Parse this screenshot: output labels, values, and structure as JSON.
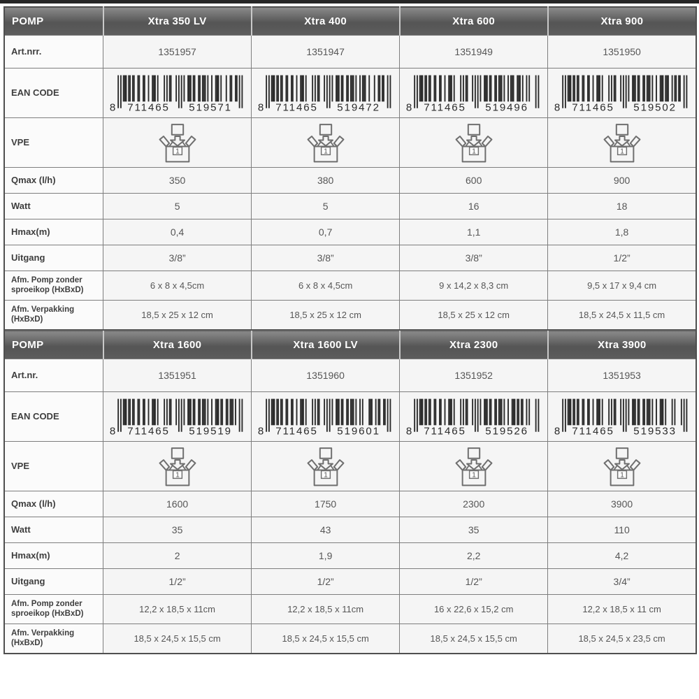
{
  "page": {
    "background": "#ffffff",
    "top_bar_color": "#262626",
    "grid_color": "#7e7e7e",
    "header_bg_top": "#8a8a8a",
    "header_bg_bottom": "#555555",
    "header_text_color": "#ffffff",
    "value_text_color": "#565656"
  },
  "icons": {
    "vpe": "packaging-box-icon",
    "ean": "barcode-graphic"
  },
  "tables": [
    {
      "corner_label": "POMP",
      "row_labels": {
        "art": "Art.nrr.",
        "ean": "EAN CODE",
        "vpe": "VPE",
        "qmax": "Qmax (l/h)",
        "watt": "Watt",
        "hmax": "Hmax(m)",
        "uitgang": "Uitgang",
        "afm_pomp": "Afm. Pomp zonder sproeikop (HxBxD)",
        "afm_verpakking": "Afm. Verpakking (HxBxD)"
      },
      "products": [
        {
          "name": "Xtra 350 LV",
          "art_nr": "1351957",
          "ean_code": "8711465519571",
          "ean_display": "8 711465 519571",
          "vpe": "1",
          "qmax": "350",
          "watt": "5",
          "hmax": "0,4",
          "uitgang": "3/8”",
          "afm_pomp": "6 x 8 x 4,5cm",
          "afm_verpakking": "18,5 x 25 x 12 cm"
        },
        {
          "name": "Xtra 400",
          "art_nr": "1351947",
          "ean_code": "8711465519472",
          "ean_display": "8 711465 519472",
          "vpe": "1",
          "qmax": "380",
          "watt": "5",
          "hmax": "0,7",
          "uitgang": "3/8”",
          "afm_pomp": "6 x 8 x 4,5cm",
          "afm_verpakking": "18,5 x 25 x 12 cm"
        },
        {
          "name": "Xtra 600",
          "art_nr": "1351949",
          "ean_code": "8711465519496",
          "ean_display": "8 711465 519496",
          "vpe": "1",
          "qmax": "600",
          "watt": "16",
          "hmax": "1,1",
          "uitgang": "3/8”",
          "afm_pomp": "9 x 14,2 x 8,3 cm",
          "afm_verpakking": "18,5 x 25 x 12 cm"
        },
        {
          "name": "Xtra 900",
          "art_nr": "1351950",
          "ean_code": "8711465519502",
          "ean_display": "8 711465 519502",
          "vpe": "1",
          "qmax": "900",
          "watt": "18",
          "hmax": "1,8",
          "uitgang": "1/2”",
          "afm_pomp": "9,5 x 17 x 9,4 cm",
          "afm_verpakking": "18,5 x 24,5 x 11,5 cm"
        }
      ]
    },
    {
      "corner_label": "POMP",
      "row_labels": {
        "art": "Art.nr.",
        "ean": "EAN CODE",
        "vpe": "VPE",
        "qmax": "Qmax (l/h)",
        "watt": "Watt",
        "hmax": "Hmax(m)",
        "uitgang": "Uitgang",
        "afm_pomp": "Afm. Pomp zonder sproeikop (HxBxD)",
        "afm_verpakking": "Afm. Verpakking (HxBxD)"
      },
      "products": [
        {
          "name": "Xtra 1600",
          "art_nr": "1351951",
          "ean_code": "8711465519519",
          "ean_display": "8 711465 519519",
          "vpe": "1",
          "qmax": "1600",
          "watt": "35",
          "hmax": "2",
          "uitgang": "1/2”",
          "afm_pomp": "12,2 x 18,5 x 11cm",
          "afm_verpakking": "18,5 x 24,5 x 15,5 cm"
        },
        {
          "name": "Xtra 1600 LV",
          "art_nr": "1351960",
          "ean_code": "8711465519601",
          "ean_display": "8 711465 519601",
          "vpe": "1",
          "qmax": "1750",
          "watt": "43",
          "hmax": "1,9",
          "uitgang": "1/2”",
          "afm_pomp": "12,2 x 18,5 x 11cm",
          "afm_verpakking": "18,5 x 24,5 x 15,5 cm"
        },
        {
          "name": "Xtra 2300",
          "art_nr": "1351952",
          "ean_code": "8711465519526",
          "ean_display": "8 711465 519526",
          "vpe": "1",
          "qmax": "2300",
          "watt": "35",
          "hmax": "2,2",
          "uitgang": "1/2”",
          "afm_pomp": "16 x 22,6 x 15,2 cm",
          "afm_verpakking": "18,5 x 24,5 x 15,5 cm"
        },
        {
          "name": "Xtra 3900",
          "art_nr": "1351953",
          "ean_code": "8711465519533",
          "ean_display": "8 711465 519533",
          "vpe": "1",
          "qmax": "3900",
          "watt": "110",
          "hmax": "4,2",
          "uitgang": "3/4”",
          "afm_pomp": "12,2 x 18,5 x 11 cm",
          "afm_verpakking": "18,5 x 24,5 x 23,5 cm"
        }
      ]
    }
  ]
}
